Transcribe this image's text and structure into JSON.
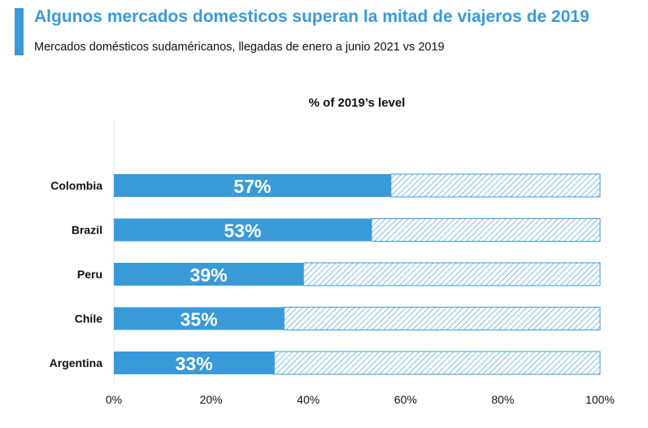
{
  "header": {
    "title": "Algunos mercados domesticos superan la mitad de viajeros de 2019",
    "subtitle": "Mercados domésticos sudaméricanos, llegadas de enero a junio 2021 vs 2019"
  },
  "colors": {
    "accent": "#3a9ad9",
    "bar_fill": "#3a9ad9",
    "remainder_hatch": "#3a9ad9",
    "text": "#111111"
  },
  "chart_data": {
    "type": "bar",
    "orientation": "horizontal",
    "title": "% of 2019’s level",
    "categories": [
      "Colombia",
      "Brazil",
      "Peru",
      "Chile",
      "Argentina"
    ],
    "values": [
      57,
      53,
      39,
      35,
      33
    ],
    "value_labels": [
      "57%",
      "53%",
      "39%",
      "35%",
      "33%"
    ],
    "remainder_to": 100,
    "remainder_style": "hatched",
    "xlim": [
      0,
      100
    ],
    "x_ticks": [
      0,
      20,
      40,
      60,
      80,
      100
    ],
    "x_tick_labels": [
      "0%",
      "20%",
      "40%",
      "60%",
      "80%",
      "100%"
    ],
    "grid": false,
    "legend": "none"
  }
}
